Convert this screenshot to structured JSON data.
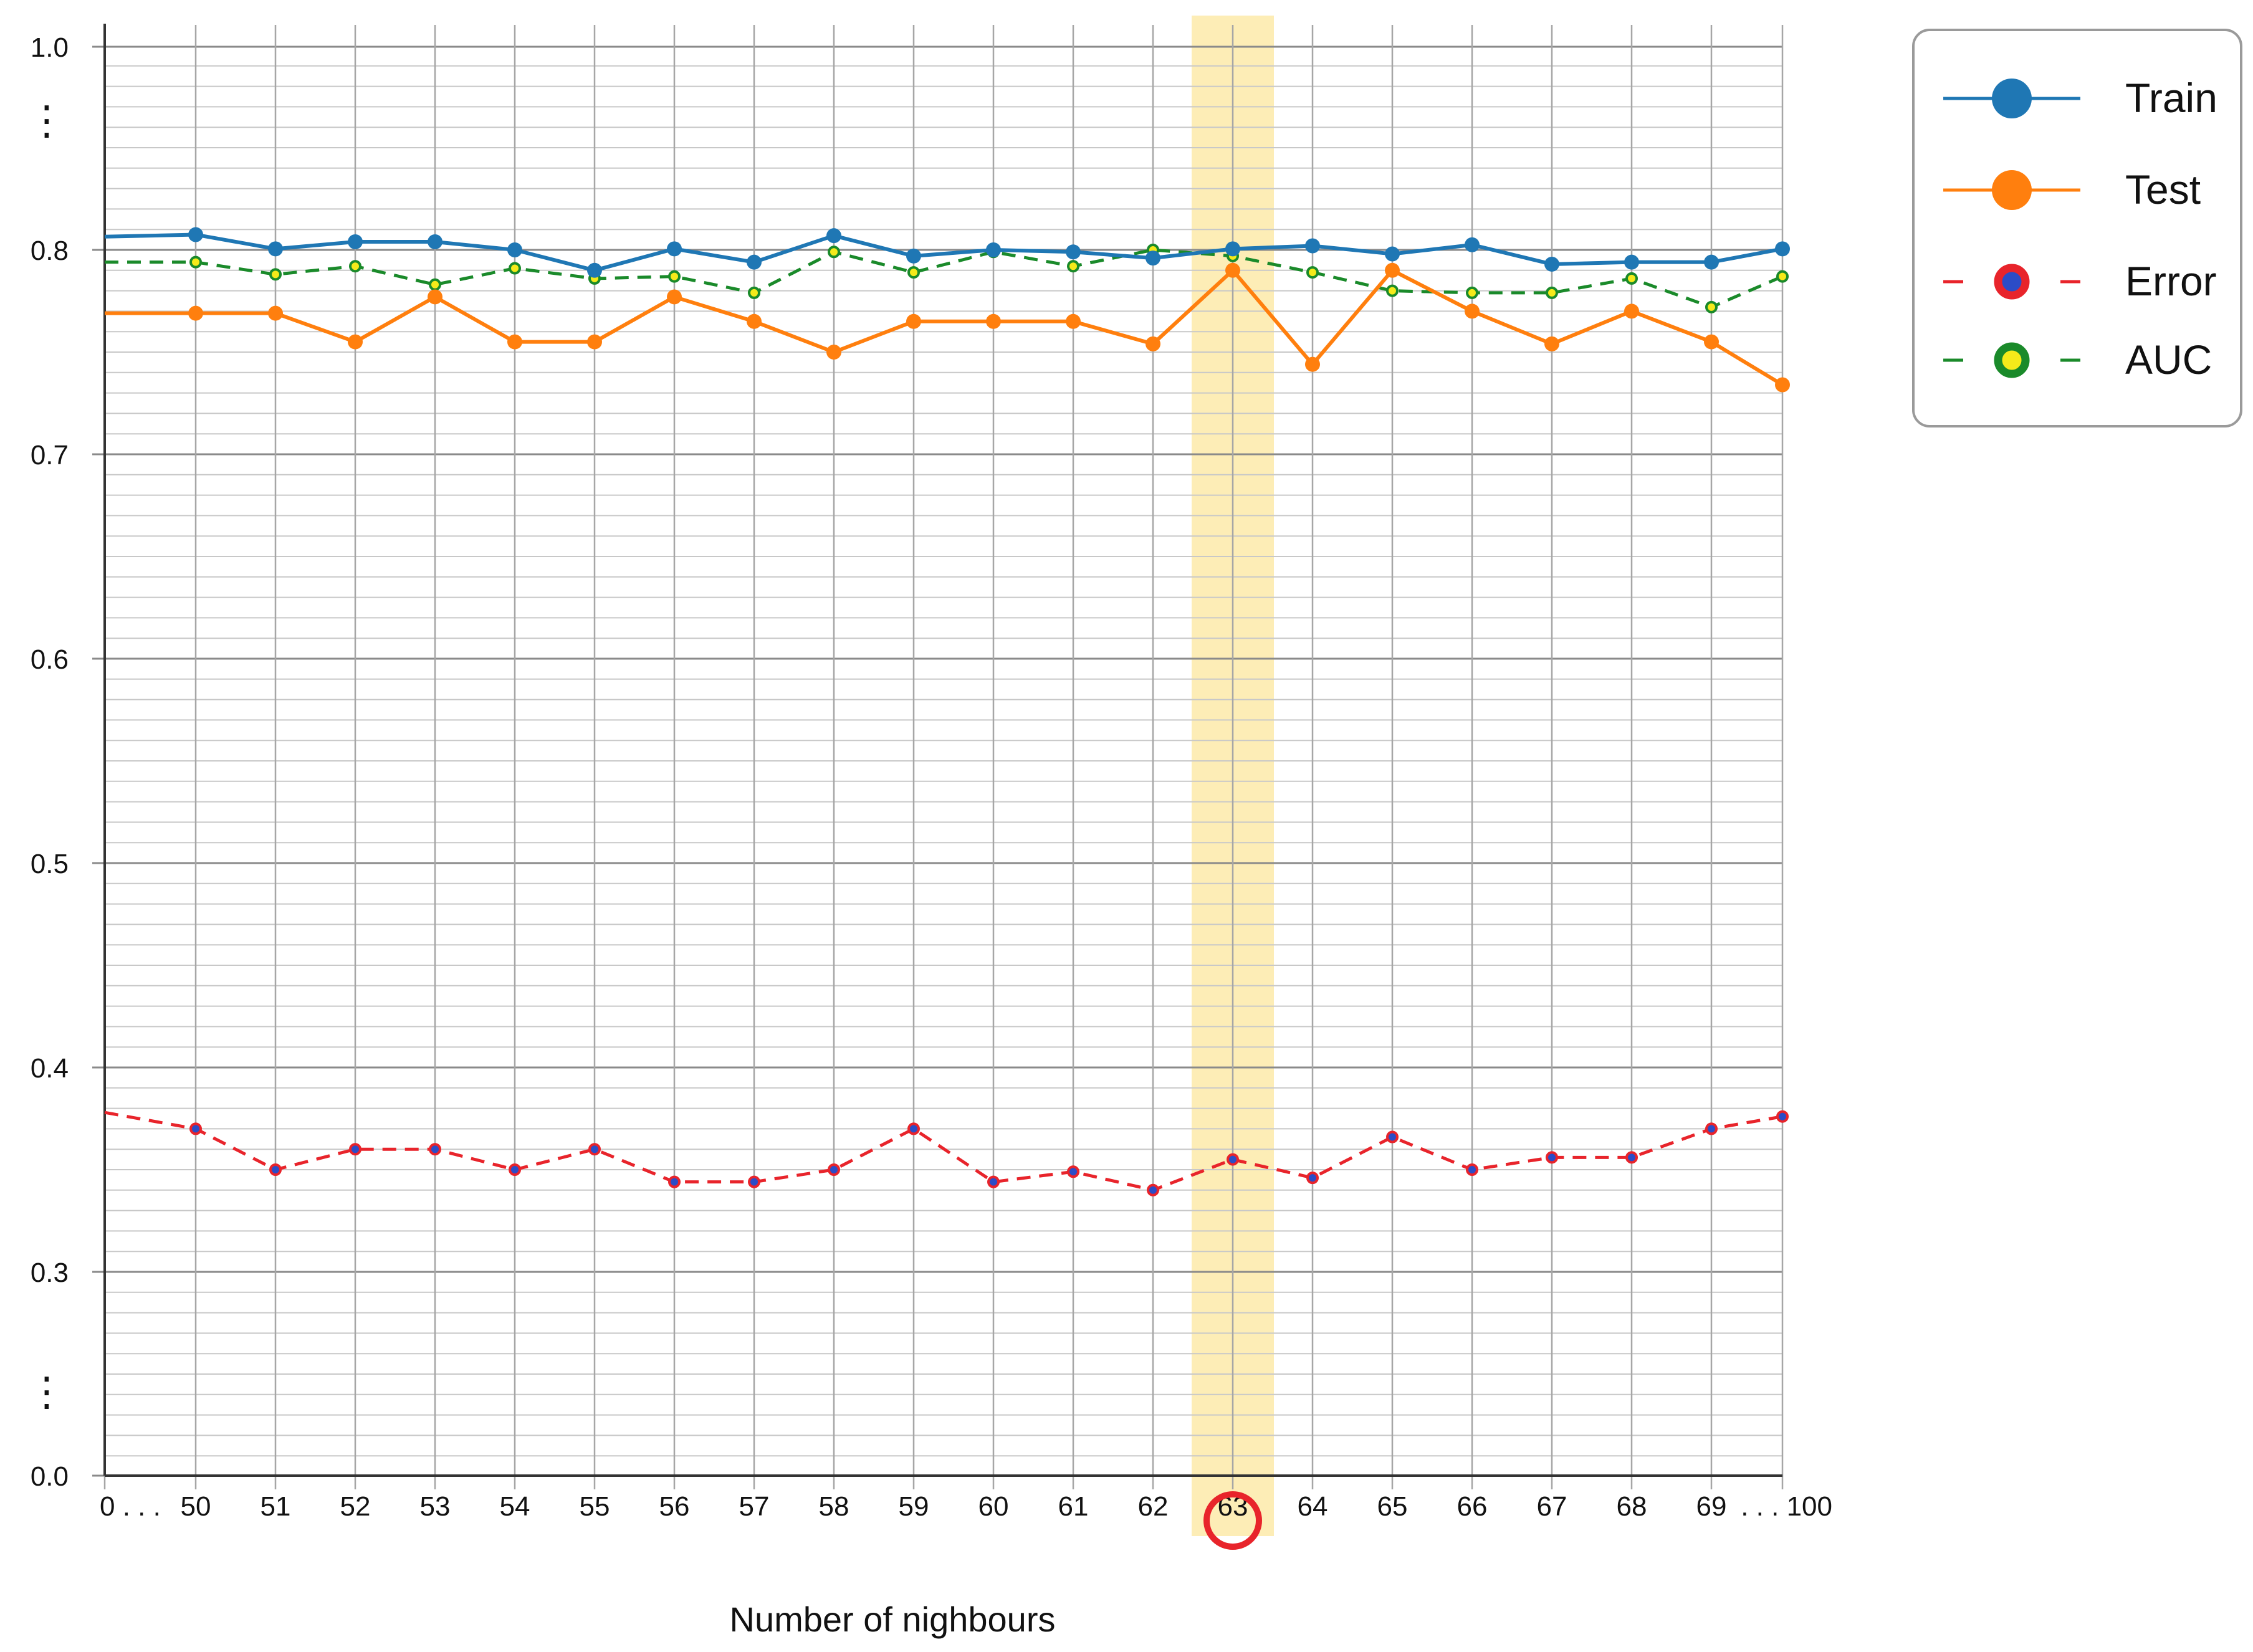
{
  "chart_data": {
    "type": "line",
    "xlabel": "Number of nighbours",
    "ylabel": "",
    "title": "",
    "categories": [
      "0",
      "50",
      "51",
      "52",
      "53",
      "54",
      "55",
      "56",
      "57",
      "58",
      "59",
      "60",
      "61",
      "62",
      "63",
      "64",
      "65",
      "66",
      "67",
      "68",
      "69",
      "100"
    ],
    "x_tick_labels": [
      "0 . . .",
      "50",
      "51",
      "52",
      "53",
      "54",
      "55",
      "56",
      "57",
      "58",
      "59",
      "60",
      "61",
      "62",
      "63",
      "64",
      "65",
      "66",
      "67",
      "68",
      "69",
      ". . . 100"
    ],
    "y_tick_labels": [
      "0.0",
      "0.3",
      "0.4",
      "0.5",
      "0.6",
      "0.7",
      "0.8",
      "1.0"
    ],
    "y_axis_break_marks": [
      "⋮",
      "⋮"
    ],
    "highlight_category": "63",
    "grid": true,
    "legend_position": "top-right, outside plot",
    "series": [
      {
        "name": "Train",
        "style": "solid",
        "color": "#1f77b4",
        "marker": "large filled circle",
        "values": [
          0.813,
          0.815,
          0.801,
          0.808,
          0.808,
          0.8,
          0.79,
          0.801,
          0.794,
          0.814,
          0.797,
          0.8,
          0.799,
          0.796,
          0.801,
          0.804,
          0.798,
          0.805,
          0.793,
          0.794,
          0.794,
          0.801
        ]
      },
      {
        "name": "Test",
        "style": "solid",
        "color": "#ff7f0e",
        "marker": "large filled circle",
        "values": [
          0.769,
          0.769,
          0.769,
          0.755,
          0.777,
          0.755,
          0.755,
          0.777,
          0.765,
          0.75,
          0.765,
          0.765,
          0.765,
          0.754,
          0.79,
          0.744,
          0.79,
          0.77,
          0.754,
          0.77,
          0.755,
          0.734
        ]
      },
      {
        "name": "Error",
        "style": "dashed",
        "color": "#e8242b",
        "marker": "small red-ringed circle with blue center",
        "values": [
          0.378,
          0.37,
          0.35,
          0.36,
          0.36,
          0.35,
          0.36,
          0.344,
          0.344,
          0.35,
          0.37,
          0.344,
          0.349,
          0.34,
          0.355,
          0.346,
          0.366,
          0.35,
          0.356,
          0.356,
          0.37,
          0.376
        ]
      },
      {
        "name": "AUC",
        "style": "dashed",
        "color": "#1a8a2a",
        "marker": "small green-ringed circle with yellow center",
        "values": [
          0.794,
          0.794,
          0.788,
          0.792,
          0.783,
          0.791,
          0.786,
          0.787,
          0.779,
          0.799,
          0.789,
          0.799,
          0.792,
          0.8,
          0.797,
          0.789,
          0.78,
          0.779,
          0.779,
          0.786,
          0.772,
          0.787
        ]
      }
    ]
  }
}
